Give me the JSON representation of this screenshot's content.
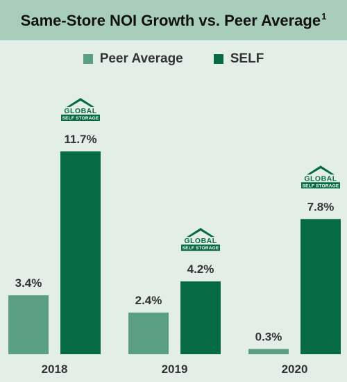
{
  "chart_data": {
    "type": "bar",
    "title": "Same-Store NOI Growth vs. Peer Average",
    "title_footnote": "1",
    "categories": [
      "2018",
      "2019",
      "2020"
    ],
    "series": [
      {
        "name": "Peer Average",
        "values": [
          3.4,
          2.4,
          0.3
        ],
        "labels": [
          "3.4%",
          "2.4%",
          "0.3%"
        ]
      },
      {
        "name": "SELF",
        "values": [
          11.7,
          4.2,
          7.8
        ],
        "labels": [
          "11.7%",
          "4.2%",
          "7.8%"
        ]
      }
    ],
    "ylim": [
      0,
      11.7
    ],
    "grid": false,
    "legend_position": "top",
    "logo": {
      "top": "GLOBAL",
      "bottom": "SELF STORAGE"
    }
  },
  "colors": {
    "background": "#e3eee9",
    "title_band": "#a9cdbb",
    "peer": "#5b9e86",
    "self": "#066b45"
  }
}
